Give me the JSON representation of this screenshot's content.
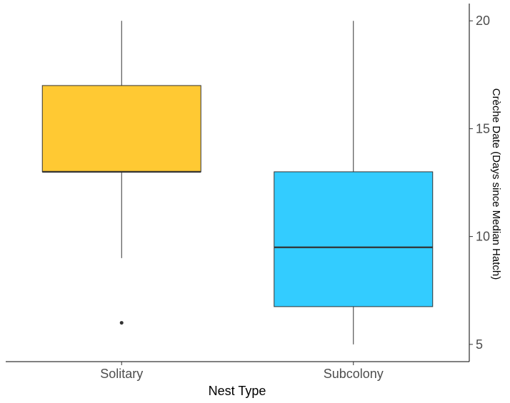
{
  "chart_data": {
    "type": "boxplot",
    "title": "",
    "xlabel": "Nest Type",
    "ylabel": "Crèche Date (Days since Median Hatch)",
    "y_axis_position": "right",
    "ylim": [
      4.2,
      20.8
    ],
    "yticks": [
      "5",
      "10",
      "15",
      "20"
    ],
    "grid": false,
    "legend": "none",
    "categories": [
      "Solitary",
      "Subcolony"
    ],
    "series": [
      {
        "category": "Solitary",
        "whisker_low": 9,
        "q1": 13,
        "median": 13,
        "q3": 17,
        "whisker_high": 20,
        "outliers": [
          6
        ],
        "color": "#FFC933"
      },
      {
        "category": "Subcolony",
        "whisker_low": 5,
        "q1": 6.75,
        "median": 9.5,
        "q3": 13,
        "whisker_high": 20,
        "outliers": [],
        "color": "#33CCFF"
      }
    ]
  }
}
